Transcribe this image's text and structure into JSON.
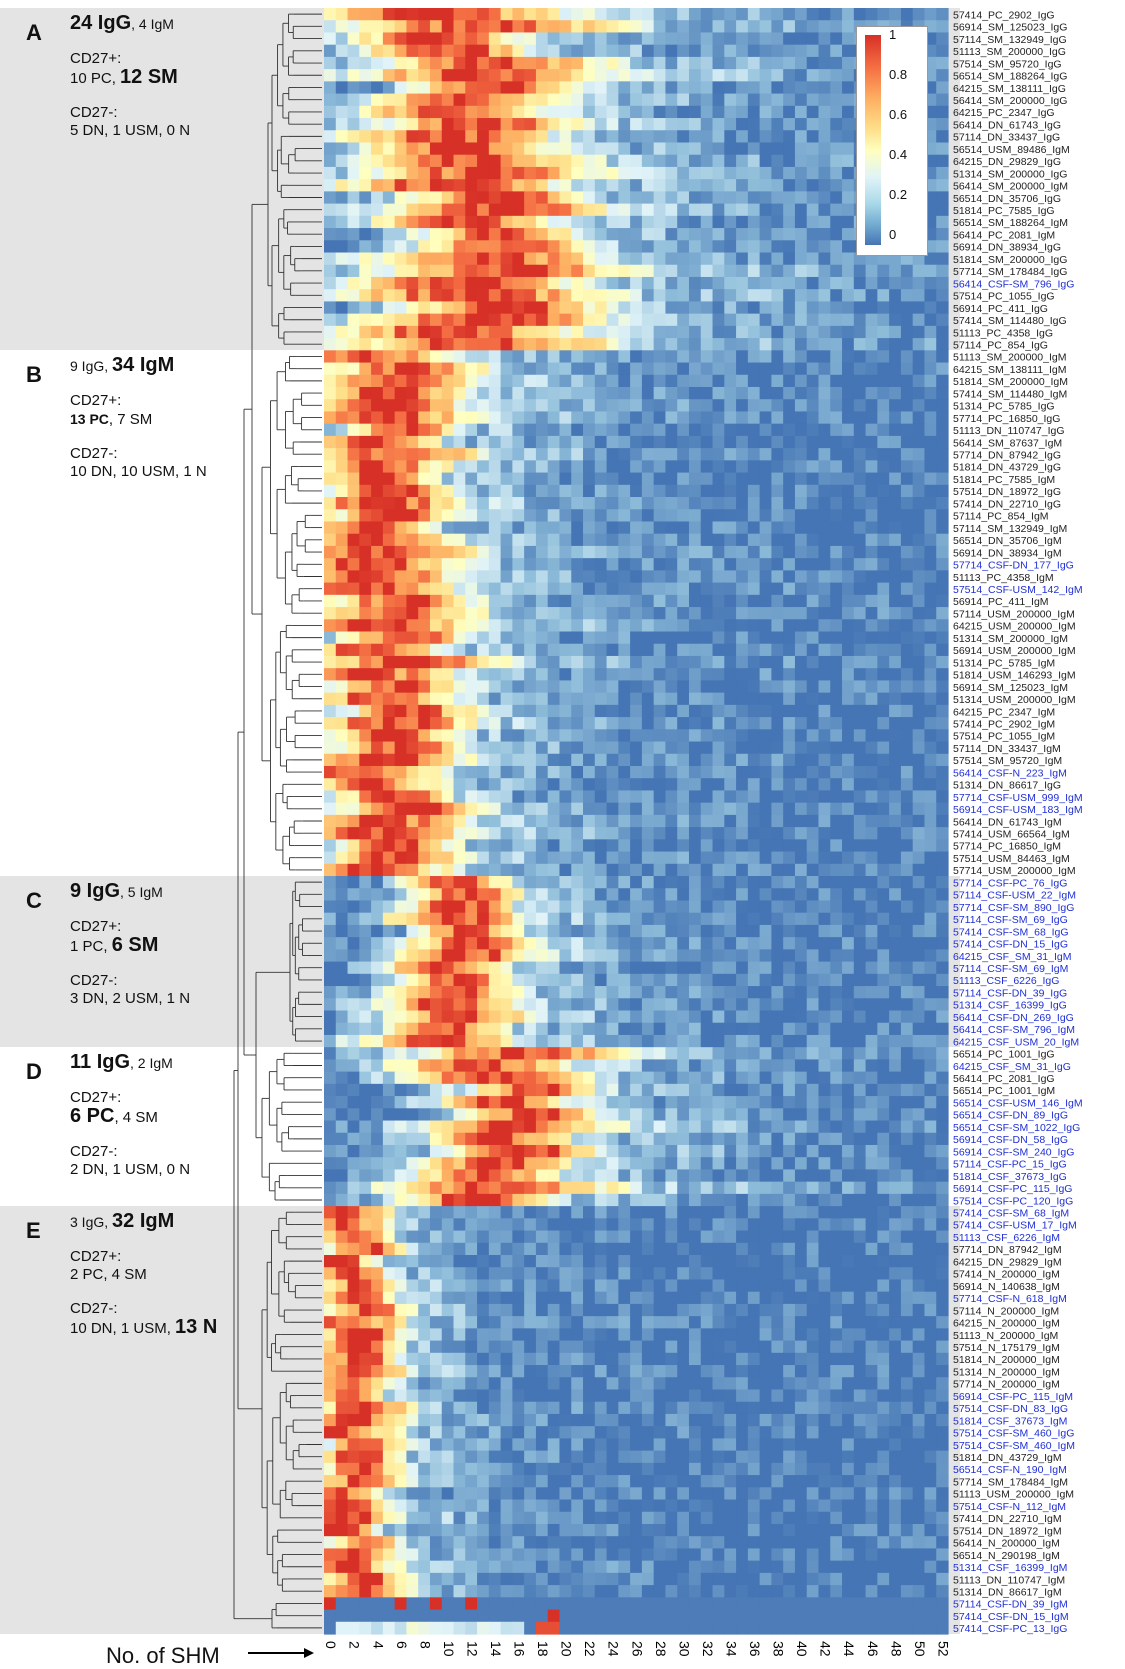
{
  "chart_data": {
    "type": "heatmap",
    "xlabel": "No. of SHM",
    "x_ticks": [
      0,
      2,
      4,
      6,
      8,
      10,
      12,
      14,
      16,
      18,
      20,
      22,
      24,
      26,
      28,
      30,
      32,
      34,
      36,
      38,
      40,
      42,
      44,
      46,
      48,
      50,
      52
    ],
    "colorbar": {
      "min": 0,
      "max": 1,
      "ticks": [
        "1",
        "0.8",
        "0.6",
        "0.4",
        "0.2",
        "0"
      ]
    },
    "colors": {
      "low": "#4575b4",
      "mid": "#ffffbf",
      "high": "#d73027",
      "csf_label": "#1f2fd6",
      "band": "#e4e4e4"
    },
    "clusters": [
      {
        "id": "A",
        "header": "24 IgG",
        "header_small": ", 4 IgM",
        "big": "IgG",
        "cd27p": "CD27+:",
        "cd27p_detail_a": "10 PC, ",
        "cd27p_detail_b": "12 SM",
        "cd27n": "CD27-:",
        "cd27n_detail_a": "5 DN, 1 USM, 0 N",
        "cd27n_detail_b": "",
        "peak_shm": 12,
        "spread": 7
      },
      {
        "id": "B",
        "header": "34 IgM",
        "header_small": "9 IgG, ",
        "big": "IgM",
        "cd27p": "CD27+:",
        "cd27p_detail_a": "13 PC",
        "cd27p_detail_b": ", 7 SM",
        "cd27n": "CD27-:",
        "cd27n_detail_a": "10 DN, 10 USM, 1 N",
        "cd27n_detail_b": "",
        "peak_shm": 5,
        "spread": 5
      },
      {
        "id": "C",
        "header": "9 IgG",
        "header_small": ", 5 IgM",
        "big": "IgG",
        "cd27p": "CD27+:",
        "cd27p_detail_a": "1 PC, ",
        "cd27p_detail_b": "6 SM",
        "cd27n": "CD27-:",
        "cd27n_detail_a": "3 DN, 2 USM, 1 N",
        "cd27n_detail_b": "",
        "peak_shm": 11,
        "spread": 4
      },
      {
        "id": "D",
        "header": "11 IgG",
        "header_small": ", 2 IgM",
        "big": "IgG",
        "cd27p": "CD27+:",
        "cd27p_detail_a": "6 PC",
        "cd27p_detail_b": ", 4 SM",
        "cd27n": "CD27-:",
        "cd27n_detail_a": "2 DN, 1 USM, 0 N",
        "cd27n_detail_b": "",
        "peak_shm": 15,
        "spread": 6
      },
      {
        "id": "E",
        "header": "32 IgM",
        "header_small": "3 IgG, ",
        "big": "IgM",
        "cd27p": "CD27+:",
        "cd27p_detail_a": "2 PC, 4 SM",
        "cd27p_detail_b": "",
        "cd27n": "CD27-:",
        "cd27n_detail_a": "10 DN, 1 USM, ",
        "cd27n_detail_b": "13 N",
        "peak_shm": 2,
        "spread": 3
      }
    ],
    "rows": [
      {
        "label": "57414_PC_2902_IgG",
        "cluster": "A",
        "csf": false
      },
      {
        "label": "56914_SM_125023_IgG",
        "cluster": "A",
        "csf": false
      },
      {
        "label": "57114_SM_132949_IgG",
        "cluster": "A",
        "csf": false
      },
      {
        "label": "51113_SM_200000_IgG",
        "cluster": "A",
        "csf": false
      },
      {
        "label": "57514_SM_95720_IgG",
        "cluster": "A",
        "csf": false
      },
      {
        "label": "56514_SM_188264_IgG",
        "cluster": "A",
        "csf": false
      },
      {
        "label": "64215_SM_138111_IgG",
        "cluster": "A",
        "csf": false
      },
      {
        "label": "56414_SM_200000_IgG",
        "cluster": "A",
        "csf": false
      },
      {
        "label": "64215_PC_2347_IgG",
        "cluster": "A",
        "csf": false
      },
      {
        "label": "56414_DN_61743_IgG",
        "cluster": "A",
        "csf": false
      },
      {
        "label": "57114_DN_33437_IgG",
        "cluster": "A",
        "csf": false
      },
      {
        "label": "56514_USM_89486_IgM",
        "cluster": "A",
        "csf": false
      },
      {
        "label": "64215_DN_29829_IgG",
        "cluster": "A",
        "csf": false
      },
      {
        "label": "51314_SM_200000_IgG",
        "cluster": "A",
        "csf": false
      },
      {
        "label": "56414_SM_200000_IgM",
        "cluster": "A",
        "csf": false
      },
      {
        "label": "56514_DN_35706_IgG",
        "cluster": "A",
        "csf": false
      },
      {
        "label": "51814_PC_7585_IgG",
        "cluster": "A",
        "csf": false
      },
      {
        "label": "56514_SM_188264_IgM",
        "cluster": "A",
        "csf": false
      },
      {
        "label": "56414_PC_2081_IgM",
        "cluster": "A",
        "csf": false
      },
      {
        "label": "56914_DN_38934_IgG",
        "cluster": "A",
        "csf": false
      },
      {
        "label": "51814_SM_200000_IgG",
        "cluster": "A",
        "csf": false
      },
      {
        "label": "57714_SM_178484_IgG",
        "cluster": "A",
        "csf": false
      },
      {
        "label": "56414_CSF-SM_796_IgG",
        "cluster": "A",
        "csf": true
      },
      {
        "label": "57514_PC_1055_IgG",
        "cluster": "A",
        "csf": false
      },
      {
        "label": "56914_PC_411_IgG",
        "cluster": "A",
        "csf": false
      },
      {
        "label": "57414_SM_114480_IgG",
        "cluster": "A",
        "csf": false
      },
      {
        "label": "51113_PC_4358_IgG",
        "cluster": "A",
        "csf": false
      },
      {
        "label": "57114_PC_854_IgG",
        "cluster": "A",
        "csf": false
      },
      {
        "label": "51113_SM_200000_IgM",
        "cluster": "B",
        "csf": false
      },
      {
        "label": "64215_SM_138111_IgM",
        "cluster": "B",
        "csf": false
      },
      {
        "label": "51814_SM_200000_IgM",
        "cluster": "B",
        "csf": false
      },
      {
        "label": "57414_SM_114480_IgM",
        "cluster": "B",
        "csf": false
      },
      {
        "label": "51314_PC_5785_IgG",
        "cluster": "B",
        "csf": false
      },
      {
        "label": "57714_PC_16850_IgG",
        "cluster": "B",
        "csf": false
      },
      {
        "label": "51113_DN_110747_IgG",
        "cluster": "B",
        "csf": false
      },
      {
        "label": "56414_SM_87637_IgM",
        "cluster": "B",
        "csf": false
      },
      {
        "label": "57714_DN_87942_IgG",
        "cluster": "B",
        "csf": false
      },
      {
        "label": "51814_DN_43729_IgG",
        "cluster": "B",
        "csf": false
      },
      {
        "label": "51814_PC_7585_IgM",
        "cluster": "B",
        "csf": false
      },
      {
        "label": "57514_DN_18972_IgG",
        "cluster": "B",
        "csf": false
      },
      {
        "label": "57414_DN_22710_IgG",
        "cluster": "B",
        "csf": false
      },
      {
        "label": "57114_PC_854_IgM",
        "cluster": "B",
        "csf": false
      },
      {
        "label": "57114_SM_132949_IgM",
        "cluster": "B",
        "csf": false
      },
      {
        "label": "56514_DN_35706_IgM",
        "cluster": "B",
        "csf": false
      },
      {
        "label": "56914_DN_38934_IgM",
        "cluster": "B",
        "csf": false
      },
      {
        "label": "57714_CSF-DN_177_IgG",
        "cluster": "B",
        "csf": true
      },
      {
        "label": "51113_PC_4358_IgM",
        "cluster": "B",
        "csf": false
      },
      {
        "label": "57514_CSF-USM_142_IgM",
        "cluster": "B",
        "csf": true
      },
      {
        "label": "56914_PC_411_IgM",
        "cluster": "B",
        "csf": false
      },
      {
        "label": "57114_USM_200000_IgM",
        "cluster": "B",
        "csf": false
      },
      {
        "label": "64215_USM_200000_IgM",
        "cluster": "B",
        "csf": false
      },
      {
        "label": "51314_SM_200000_IgM",
        "cluster": "B",
        "csf": false
      },
      {
        "label": "56914_USM_200000_IgM",
        "cluster": "B",
        "csf": false
      },
      {
        "label": "51314_PC_5785_IgM",
        "cluster": "B",
        "csf": false
      },
      {
        "label": "51814_USM_146293_IgM",
        "cluster": "B",
        "csf": false
      },
      {
        "label": "56914_SM_125023_IgM",
        "cluster": "B",
        "csf": false
      },
      {
        "label": "51314_USM_200000_IgM",
        "cluster": "B",
        "csf": false
      },
      {
        "label": "64215_PC_2347_IgM",
        "cluster": "B",
        "csf": false
      },
      {
        "label": "57414_PC_2902_IgM",
        "cluster": "B",
        "csf": false
      },
      {
        "label": "57514_PC_1055_IgM",
        "cluster": "B",
        "csf": false
      },
      {
        "label": "57114_DN_33437_IgM",
        "cluster": "B",
        "csf": false
      },
      {
        "label": "57514_SM_95720_IgM",
        "cluster": "B",
        "csf": false
      },
      {
        "label": "56414_CSF-N_223_IgM",
        "cluster": "B",
        "csf": true
      },
      {
        "label": "51314_DN_86617_IgG",
        "cluster": "B",
        "csf": false
      },
      {
        "label": "57714_CSF-USM_999_IgM",
        "cluster": "B",
        "csf": true
      },
      {
        "label": "56914_CSF-USM_183_IgM",
        "cluster": "B",
        "csf": true
      },
      {
        "label": "56414_DN_61743_IgM",
        "cluster": "B",
        "csf": false
      },
      {
        "label": "57414_USM_66564_IgM",
        "cluster": "B",
        "csf": false
      },
      {
        "label": "57714_PC_16850_IgM",
        "cluster": "B",
        "csf": false
      },
      {
        "label": "57514_USM_84463_IgM",
        "cluster": "B",
        "csf": false
      },
      {
        "label": "57714_USM_200000_IgM",
        "cluster": "B",
        "csf": false
      },
      {
        "label": "57714_CSF-PC_76_IgG",
        "cluster": "C",
        "csf": true
      },
      {
        "label": "57114_CSF-USM_22_IgM",
        "cluster": "C",
        "csf": true
      },
      {
        "label": "57714_CSF-SM_890_IgG",
        "cluster": "C",
        "csf": true
      },
      {
        "label": "57114_CSF-SM_69_IgG",
        "cluster": "C",
        "csf": true
      },
      {
        "label": "57414_CSF-SM_68_IgG",
        "cluster": "C",
        "csf": true
      },
      {
        "label": "57414_CSF-DN_15_IgG",
        "cluster": "C",
        "csf": true
      },
      {
        "label": "64215_CSF_SM_31_IgM",
        "cluster": "C",
        "csf": true
      },
      {
        "label": "57114_CSF-SM_69_IgM",
        "cluster": "C",
        "csf": true
      },
      {
        "label": "51113_CSF_6226_IgG",
        "cluster": "C",
        "csf": true
      },
      {
        "label": "57114_CSF-DN_39_IgG",
        "cluster": "C",
        "csf": true
      },
      {
        "label": "51314_CSF_16399_IgG",
        "cluster": "C",
        "csf": true
      },
      {
        "label": "56414_CSF-DN_269_IgG",
        "cluster": "C",
        "csf": true
      },
      {
        "label": "56414_CSF-SM_796_IgM",
        "cluster": "C",
        "csf": true
      },
      {
        "label": "64215_CSF_USM_20_IgM",
        "cluster": "C",
        "csf": true
      },
      {
        "label": "56514_PC_1001_IgG",
        "cluster": "D",
        "csf": false
      },
      {
        "label": "64215_CSF_SM_31_IgG",
        "cluster": "D",
        "csf": true
      },
      {
        "label": "56414_PC_2081_IgG",
        "cluster": "D",
        "csf": false
      },
      {
        "label": "56514_PC_1001_IgM",
        "cluster": "D",
        "csf": false
      },
      {
        "label": "56514_CSF-USM_146_IgM",
        "cluster": "D",
        "csf": true
      },
      {
        "label": "56514_CSF-DN_89_IgG",
        "cluster": "D",
        "csf": true
      },
      {
        "label": "56514_CSF-SM_1022_IgG",
        "cluster": "D",
        "csf": true
      },
      {
        "label": "56914_CSF-DN_58_IgG",
        "cluster": "D",
        "csf": true
      },
      {
        "label": "56914_CSF-SM_240_IgG",
        "cluster": "D",
        "csf": true
      },
      {
        "label": "57114_CSF-PC_15_IgG",
        "cluster": "D",
        "csf": true
      },
      {
        "label": "51814_CSF_37673_IgG",
        "cluster": "D",
        "csf": true
      },
      {
        "label": "56914_CSF-PC_115_IgG",
        "cluster": "D",
        "csf": true
      },
      {
        "label": "57514_CSF-PC_120_IgG",
        "cluster": "D",
        "csf": true
      },
      {
        "label": "57414_CSF-SM_68_IgM",
        "cluster": "E",
        "csf": true
      },
      {
        "label": "57414_CSF-USM_17_IgM",
        "cluster": "E",
        "csf": true
      },
      {
        "label": "51113_CSF_6226_IgM",
        "cluster": "E",
        "csf": true
      },
      {
        "label": "57714_DN_87942_IgM",
        "cluster": "E",
        "csf": false
      },
      {
        "label": "64215_DN_29829_IgM",
        "cluster": "E",
        "csf": false
      },
      {
        "label": "57414_N_200000_IgM",
        "cluster": "E",
        "csf": false
      },
      {
        "label": "56914_N_140638_IgM",
        "cluster": "E",
        "csf": false
      },
      {
        "label": "57714_CSF-N_618_IgM",
        "cluster": "E",
        "csf": true
      },
      {
        "label": "57114_N_200000_IgM",
        "cluster": "E",
        "csf": false
      },
      {
        "label": "64215_N_200000_IgM",
        "cluster": "E",
        "csf": false
      },
      {
        "label": "51113_N_200000_IgM",
        "cluster": "E",
        "csf": false
      },
      {
        "label": "57514_N_175179_IgM",
        "cluster": "E",
        "csf": false
      },
      {
        "label": "51814_N_200000_IgM",
        "cluster": "E",
        "csf": false
      },
      {
        "label": "51314_N_200000_IgM",
        "cluster": "E",
        "csf": false
      },
      {
        "label": "57714_N_200000_IgM",
        "cluster": "E",
        "csf": false
      },
      {
        "label": "56914_CSF-PC_115_IgM",
        "cluster": "E",
        "csf": true
      },
      {
        "label": "57514_CSF-DN_83_IgG",
        "cluster": "E",
        "csf": true
      },
      {
        "label": "51814_CSF_37673_IgM",
        "cluster": "E",
        "csf": true
      },
      {
        "label": "57514_CSF-SM_460_IgG",
        "cluster": "E",
        "csf": true
      },
      {
        "label": "57514_CSF-SM_460_IgM",
        "cluster": "E",
        "csf": true
      },
      {
        "label": "51814_DN_43729_IgM",
        "cluster": "E",
        "csf": false
      },
      {
        "label": "56514_CSF-N_190_IgM",
        "cluster": "E",
        "csf": true
      },
      {
        "label": "57714_SM_178484_IgM",
        "cluster": "E",
        "csf": false
      },
      {
        "label": "51113_USM_200000_IgM",
        "cluster": "E",
        "csf": false
      },
      {
        "label": "57514_CSF-N_112_IgM",
        "cluster": "E",
        "csf": true
      },
      {
        "label": "57414_DN_22710_IgM",
        "cluster": "E",
        "csf": false
      },
      {
        "label": "57514_DN_18972_IgM",
        "cluster": "E",
        "csf": false
      },
      {
        "label": "56414_N_200000_IgM",
        "cluster": "E",
        "csf": false
      },
      {
        "label": "56514_N_290198_IgM",
        "cluster": "E",
        "csf": false
      },
      {
        "label": "51314_CSF_16399_IgM",
        "cluster": "E",
        "csf": true
      },
      {
        "label": "51113_DN_110747_IgM",
        "cluster": "E",
        "csf": false
      },
      {
        "label": "51314_DN_86617_IgM",
        "cluster": "E",
        "csf": false
      },
      {
        "label": "57114_CSF-DN_39_IgM",
        "cluster": "F",
        "csf": true
      },
      {
        "label": "57414_CSF-DN_15_IgM",
        "cluster": "F",
        "csf": true
      },
      {
        "label": "57414_CSF-PC_13_IgG",
        "cluster": "F",
        "csf": true
      }
    ]
  }
}
